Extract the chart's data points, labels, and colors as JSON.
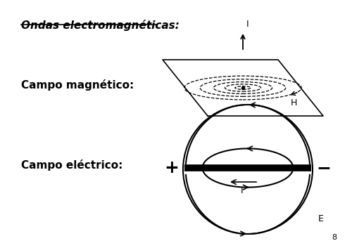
{
  "title": "Ondas electromagnéticas:",
  "label_magnetic": "Campo magnético:",
  "label_electric": "Campo eléctrico:",
  "page_number": "8",
  "bg_color": "#ffffff",
  "fg_color": "#000000",
  "fig_width": 5.0,
  "fig_height": 3.53,
  "dpi": 100
}
